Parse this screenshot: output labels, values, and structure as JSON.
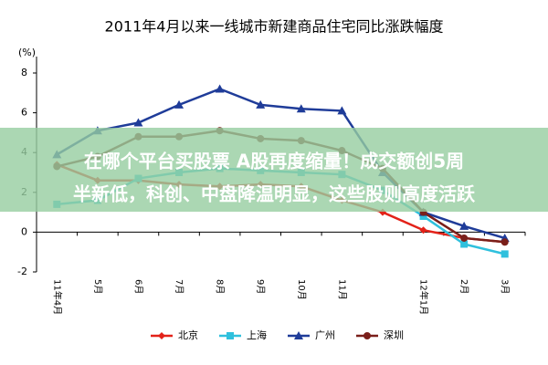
{
  "chart_data": {
    "type": "line",
    "title": "2011年4月以来一线城市新建商品住宅同比涨跌幅度",
    "y_label": "(%)",
    "categories": [
      "11年4月",
      "5月",
      "6月",
      "7月",
      "8月",
      "9月",
      "10月",
      "11月",
      null,
      "12年1月",
      "2月",
      "3月"
    ],
    "ylim": [
      -2,
      8
    ],
    "yticks": [
      -2,
      0,
      2,
      4,
      6,
      8
    ],
    "legend": "bottom",
    "series": [
      {
        "name": "北京",
        "color": "#e32219",
        "marker": "diamond",
        "values": [
          3.4,
          2.6,
          2.6,
          2.4,
          2.3,
          2.4,
          2.3,
          1.6,
          1.0,
          0.1,
          -0.3,
          -0.5
        ]
      },
      {
        "name": "上海",
        "color": "#2fc0dd",
        "marker": "square",
        "values": [
          1.4,
          1.6,
          2.7,
          3.0,
          3.2,
          3.1,
          3.0,
          2.9,
          2.1,
          0.8,
          -0.6,
          -1.1
        ]
      },
      {
        "name": "广州",
        "color": "#1f3c99",
        "marker": "triangle",
        "values": [
          3.9,
          5.1,
          5.5,
          6.4,
          7.2,
          6.4,
          6.2,
          6.1,
          3.0,
          1.0,
          0.3,
          -0.3
        ]
      },
      {
        "name": "深圳",
        "color": "#7a1f1a",
        "marker": "circle",
        "values": [
          3.3,
          3.8,
          4.8,
          4.8,
          5.1,
          4.7,
          4.6,
          4.1,
          3.2,
          1.0,
          -0.3,
          -0.5
        ]
      }
    ]
  },
  "overlay": {
    "lines": [
      "在哪个平台买股票 A股再度缩量！成交额创5周",
      "半新低，科创、中盘降温明显，这些股则高度活跃"
    ]
  }
}
